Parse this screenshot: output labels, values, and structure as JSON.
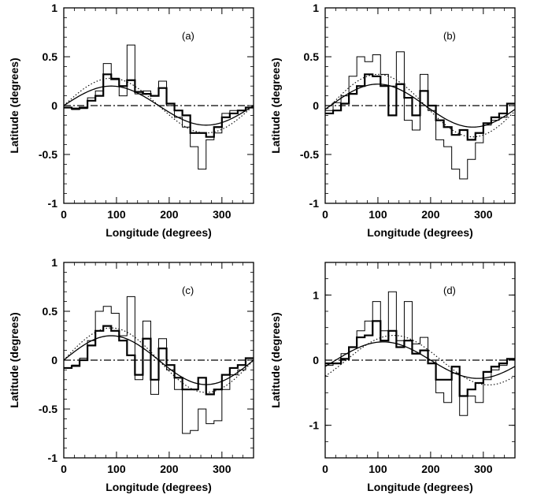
{
  "chart_data": [
    {
      "type": "line",
      "panel_label": "(a)",
      "xlabel": "Longitude (degrees)",
      "ylabel": "Latitude (degrees)",
      "xlim": [
        0,
        360
      ],
      "ylim": [
        -1,
        1
      ],
      "xticks": [
        0,
        100,
        200,
        300
      ],
      "yticks": [
        -1,
        -0.5,
        0,
        0.5,
        1
      ],
      "ytick_labels": [
        "-1",
        "-0.5",
        "0",
        "0.5",
        "1"
      ],
      "bin_edges": [
        0,
        15,
        30,
        45,
        60,
        75,
        90,
        105,
        120,
        135,
        150,
        165,
        180,
        195,
        210,
        225,
        240,
        255,
        270,
        285,
        300,
        315,
        330,
        345,
        360
      ],
      "series": [
        {
          "style": "thin-histogram",
          "values": [
            -0.02,
            -0.04,
            -0.03,
            0.08,
            0.15,
            0.43,
            0.28,
            0.1,
            0.62,
            0.12,
            0.15,
            0.1,
            0.25,
            0.0,
            -0.12,
            -0.22,
            -0.42,
            -0.65,
            -0.35,
            -0.28,
            -0.08,
            -0.05,
            -0.05,
            -0.02
          ]
        },
        {
          "style": "thick-histogram",
          "values": [
            -0.02,
            -0.03,
            -0.02,
            0.05,
            0.1,
            0.32,
            0.27,
            0.2,
            0.26,
            0.14,
            0.12,
            0.1,
            0.18,
            0.02,
            -0.05,
            -0.1,
            -0.28,
            -0.28,
            -0.32,
            -0.22,
            -0.12,
            -0.08,
            -0.05,
            -0.02
          ]
        },
        {
          "style": "solid-sine",
          "amplitude": 0.2,
          "phase_deg": 0
        },
        {
          "style": "dotted-sine",
          "amplitude": 0.28,
          "phase_deg": 0
        },
        {
          "style": "dash-dot-zero",
          "value": 0
        }
      ]
    },
    {
      "type": "line",
      "panel_label": "(b)",
      "xlabel": "Longitude (degrees)",
      "ylabel": "Latitude (degrees)",
      "xlim": [
        0,
        360
      ],
      "ylim": [
        -1,
        1
      ],
      "xticks": [
        0,
        100,
        200,
        300
      ],
      "yticks": [
        -1,
        -0.5,
        0,
        0.5,
        1
      ],
      "ytick_labels": [
        "-1",
        "-0.5",
        "0",
        "0.5",
        "1"
      ],
      "bin_edges": [
        0,
        15,
        30,
        45,
        60,
        75,
        90,
        105,
        120,
        135,
        150,
        165,
        180,
        195,
        210,
        225,
        240,
        255,
        270,
        285,
        300,
        315,
        330,
        345,
        360
      ],
      "series": [
        {
          "style": "thin-histogram",
          "values": [
            -0.05,
            0.03,
            0.1,
            0.3,
            0.5,
            0.45,
            0.52,
            0.32,
            0.2,
            0.55,
            -0.15,
            -0.25,
            0.32,
            -0.05,
            -0.35,
            -0.42,
            -0.65,
            -0.75,
            -0.55,
            -0.38,
            -0.2,
            -0.15,
            -0.12,
            0.02
          ]
        },
        {
          "style": "thick-histogram",
          "values": [
            -0.08,
            -0.05,
            0.02,
            0.12,
            0.2,
            0.32,
            0.3,
            0.2,
            -0.1,
            0.22,
            0.08,
            -0.1,
            0.15,
            0.0,
            -0.15,
            -0.22,
            -0.3,
            -0.25,
            -0.35,
            -0.28,
            -0.18,
            -0.12,
            -0.08,
            0.02
          ]
        },
        {
          "style": "solid-sine",
          "amplitude": 0.22,
          "phase_deg": -10
        },
        {
          "style": "dotted-sine",
          "amplitude": 0.32,
          "phase_deg": -10
        },
        {
          "style": "dash-dot-zero",
          "value": 0
        }
      ]
    },
    {
      "type": "line",
      "panel_label": "(c)",
      "xlabel": "Longitude (degrees)",
      "ylabel": "Latitude (degrees)",
      "xlim": [
        0,
        360
      ],
      "ylim": [
        -1,
        1
      ],
      "xticks": [
        0,
        100,
        200,
        300
      ],
      "yticks": [
        -1,
        -0.5,
        0,
        0.5,
        1
      ],
      "ytick_labels": [
        "-1",
        "-0.5",
        "0",
        "0.5",
        "1"
      ],
      "bin_edges": [
        0,
        15,
        30,
        45,
        60,
        75,
        90,
        105,
        120,
        135,
        150,
        165,
        180,
        195,
        210,
        225,
        240,
        255,
        270,
        285,
        300,
        315,
        330,
        345,
        360
      ],
      "series": [
        {
          "style": "thin-histogram",
          "values": [
            -0.08,
            -0.05,
            0.02,
            0.2,
            0.5,
            0.55,
            0.48,
            0.25,
            0.65,
            -0.2,
            0.4,
            -0.35,
            0.22,
            -0.1,
            -0.3,
            -0.75,
            -0.72,
            -0.5,
            -0.65,
            -0.62,
            -0.3,
            -0.15,
            -0.1,
            0.02
          ]
        },
        {
          "style": "thick-histogram",
          "values": [
            -0.08,
            -0.06,
            0.0,
            0.15,
            0.3,
            0.35,
            0.3,
            0.2,
            0.05,
            -0.15,
            0.22,
            -0.2,
            0.12,
            -0.05,
            -0.18,
            -0.3,
            -0.3,
            -0.18,
            -0.35,
            -0.3,
            -0.15,
            -0.08,
            -0.05,
            0.02
          ]
        },
        {
          "style": "solid-sine",
          "amplitude": 0.25,
          "phase_deg": 0
        },
        {
          "style": "dotted-sine",
          "amplitude": 0.33,
          "phase_deg": 0
        },
        {
          "style": "dash-dot-zero",
          "value": 0
        }
      ]
    },
    {
      "type": "line",
      "panel_label": "(d)",
      "xlabel": "Longitude (degrees)",
      "ylabel": "Latitude (degrees)",
      "xlim": [
        0,
        360
      ],
      "ylim": [
        -1.5,
        1.5
      ],
      "xticks": [
        0,
        100,
        200,
        300
      ],
      "yticks": [
        -1,
        0,
        1
      ],
      "ytick_labels": [
        "-1",
        "0",
        "1"
      ],
      "bin_edges": [
        0,
        15,
        30,
        45,
        60,
        75,
        90,
        105,
        120,
        135,
        150,
        165,
        180,
        195,
        210,
        225,
        240,
        255,
        270,
        285,
        300,
        315,
        330,
        345,
        360
      ],
      "series": [
        {
          "style": "thin-histogram",
          "values": [
            -0.08,
            -0.05,
            0.1,
            0.2,
            0.45,
            0.6,
            0.9,
            0.45,
            1.05,
            0.3,
            0.9,
            0.25,
            0.35,
            0.0,
            -0.5,
            -0.65,
            -0.2,
            -0.85,
            -0.55,
            -0.65,
            -0.3,
            -0.15,
            -0.08,
            0.02
          ]
        },
        {
          "style": "thick-histogram",
          "values": [
            -0.05,
            -0.05,
            0.02,
            0.2,
            0.35,
            0.38,
            0.6,
            0.3,
            0.45,
            0.2,
            0.3,
            0.1,
            0.15,
            -0.05,
            -0.3,
            -0.3,
            -0.1,
            -0.55,
            -0.45,
            -0.35,
            -0.18,
            -0.1,
            -0.05,
            0.02
          ]
        },
        {
          "style": "solid-sine",
          "amplitude": 0.28,
          "phase_deg": -20
        },
        {
          "style": "dotted-sine",
          "amplitude": 0.38,
          "phase_deg": -40
        },
        {
          "style": "dash-dot-zero",
          "value": 0
        }
      ]
    }
  ],
  "colors": {
    "ink": "#000000",
    "background": "#ffffff"
  }
}
